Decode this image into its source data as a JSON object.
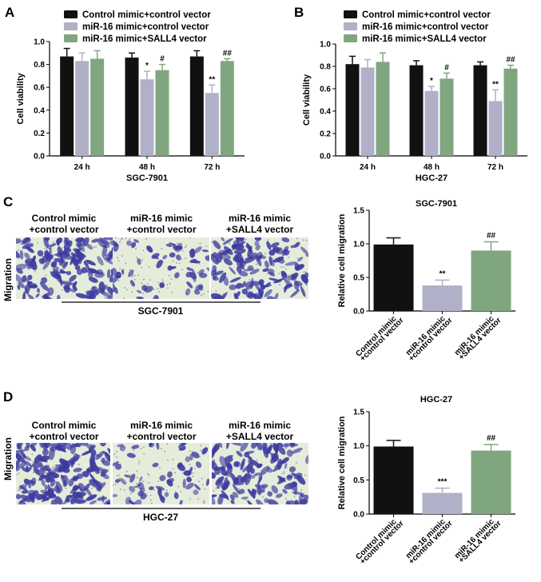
{
  "panels": {
    "a": "A",
    "b": "B",
    "c": "C",
    "d": "D"
  },
  "colors": {
    "black": "#111111",
    "lavender": "#b1b0c9",
    "green": "#80a67f",
    "stain": "#3b3aa0",
    "field_light": "#e6ecda"
  },
  "micrographs": {
    "row_label": "Migration",
    "c_group": "SGC-7901",
    "d_group": "HGC-27",
    "images": [
      {
        "line1": "Control mimic",
        "line2": "+control vector",
        "density": "high"
      },
      {
        "line1": "miR-16 mimic",
        "line2": "+control vector",
        "density": "low"
      },
      {
        "line1": "miR-16 mimic",
        "line2": "+SALL4 vector",
        "density": "medium"
      }
    ]
  },
  "chart_data": [
    {
      "type": "bar",
      "panel": "A",
      "title": "",
      "group_label": "SGC-7901",
      "ylabel": "Cell viability",
      "ylim": [
        0,
        1.0
      ],
      "yticks": [
        "0.0",
        "0.2",
        "0.4",
        "0.6",
        "0.8",
        "1.0"
      ],
      "categories": [
        "24 h",
        "48 h",
        "72 h"
      ],
      "series": [
        {
          "name": "Control mimic+control vector",
          "values": [
            0.87,
            0.86,
            0.87
          ],
          "errors": [
            0.07,
            0.04,
            0.05
          ],
          "marks": [
            "",
            "",
            ""
          ]
        },
        {
          "name": "miR-16 mimic+control vector",
          "values": [
            0.83,
            0.67,
            0.55
          ],
          "errors": [
            0.07,
            0.07,
            0.07
          ],
          "marks": [
            "",
            "*",
            "**"
          ]
        },
        {
          "name": "miR-16 mimic+SALL4 vector",
          "values": [
            0.85,
            0.75,
            0.83
          ],
          "errors": [
            0.07,
            0.05,
            0.02
          ],
          "marks": [
            "",
            "#",
            "##"
          ]
        }
      ]
    },
    {
      "type": "bar",
      "panel": "B",
      "title": "",
      "group_label": "HGC-27",
      "ylabel": "Cell viability",
      "ylim": [
        0,
        1.0
      ],
      "yticks": [
        "0.0",
        "0.2",
        "0.4",
        "0.6",
        "0.8",
        "1.0"
      ],
      "categories": [
        "24 h",
        "48 h",
        "72 h"
      ],
      "series": [
        {
          "name": "Control mimic+control vector",
          "values": [
            0.82,
            0.81,
            0.81
          ],
          "errors": [
            0.07,
            0.04,
            0.03
          ],
          "marks": [
            "",
            "",
            ""
          ]
        },
        {
          "name": "miR-16 mimic+control vector",
          "values": [
            0.79,
            0.58,
            0.49
          ],
          "errors": [
            0.07,
            0.04,
            0.1
          ],
          "marks": [
            "",
            "*",
            "**"
          ]
        },
        {
          "name": "miR-16 mimic+SALL4 vector",
          "values": [
            0.84,
            0.69,
            0.78
          ],
          "errors": [
            0.08,
            0.05,
            0.03
          ],
          "marks": [
            "",
            "#",
            "##"
          ]
        }
      ]
    },
    {
      "type": "bar",
      "panel": "C",
      "title": "SGC-7901",
      "ylabel": "Relative cell migration",
      "ylim": [
        0,
        1.5
      ],
      "yticks": [
        "0.0",
        "0.5",
        "1.0",
        "1.5"
      ],
      "categories": [
        [
          "Control mimic",
          "+control vector"
        ],
        [
          "miR-16 mimic",
          "+control vector"
        ],
        [
          "miR-16 mimic",
          "+SALL4 vector"
        ]
      ],
      "values": [
        0.99,
        0.38,
        0.9
      ],
      "errors": [
        0.1,
        0.08,
        0.13
      ],
      "marks": [
        "",
        "**",
        "##"
      ]
    },
    {
      "type": "bar",
      "panel": "D",
      "title": "HGC-27",
      "ylabel": "Relative cell migration",
      "ylim": [
        0,
        1.5
      ],
      "yticks": [
        "0.0",
        "0.5",
        "1.0",
        "1.5"
      ],
      "categories": [
        [
          "Control mimic",
          "+control vector"
        ],
        [
          "miR-16 mimic",
          "+control vector"
        ],
        [
          "miR-16 mimic",
          "+SALL4 vector"
        ]
      ],
      "values": [
        0.99,
        0.31,
        0.93
      ],
      "errors": [
        0.09,
        0.07,
        0.09
      ],
      "marks": [
        "",
        "***",
        "##"
      ]
    }
  ]
}
